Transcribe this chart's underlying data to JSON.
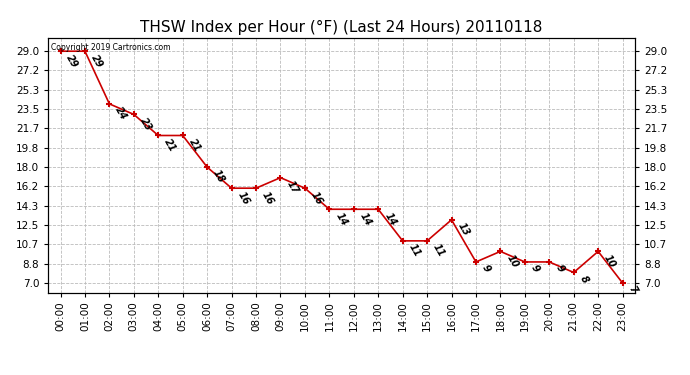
{
  "title": "THSW Index per Hour (°F) (Last 24 Hours) 20110118",
  "x_labels": [
    "00:00",
    "01:00",
    "02:00",
    "03:00",
    "04:00",
    "05:00",
    "06:00",
    "07:00",
    "08:00",
    "09:00",
    "10:00",
    "11:00",
    "12:00",
    "13:00",
    "14:00",
    "15:00",
    "16:00",
    "17:00",
    "18:00",
    "19:00",
    "20:00",
    "21:00",
    "22:00",
    "23:00"
  ],
  "y_values": [
    29,
    29,
    24,
    23,
    21,
    21,
    18,
    16,
    16,
    17,
    16,
    14,
    14,
    14,
    11,
    11,
    13,
    9,
    10,
    9,
    9,
    8,
    10,
    7
  ],
  "y_left_ticks": [
    7.0,
    8.8,
    10.7,
    12.5,
    14.3,
    16.2,
    18.0,
    19.8,
    21.7,
    23.5,
    25.3,
    27.2,
    29.0
  ],
  "line_color": "#cc0000",
  "marker_color": "#cc0000",
  "bg_color": "#ffffff",
  "grid_color": "#bbbbbb",
  "copyright_text": "Copyright 2019 Cartronics.com",
  "ylim_min": 6.1,
  "ylim_max": 30.3,
  "title_fontsize": 11,
  "label_fontsize": 7,
  "tick_fontsize": 7.5
}
